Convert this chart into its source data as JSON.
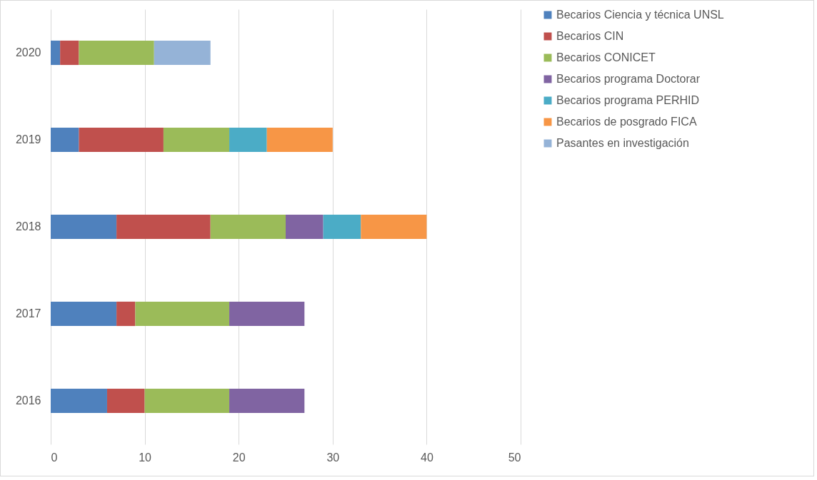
{
  "chart_data": {
    "type": "bar",
    "orientation": "horizontal",
    "stacked": true,
    "categories": [
      "2020",
      "2019",
      "2018",
      "2017",
      "2016"
    ],
    "series": [
      {
        "name": "Becarios Ciencia y técnica UNSL",
        "color": "#4f81bd",
        "values": [
          1,
          3,
          7,
          7,
          6
        ]
      },
      {
        "name": "Becarios CIN",
        "color": "#c0504d",
        "values": [
          2,
          9,
          10,
          2,
          4
        ]
      },
      {
        "name": "Becarios CONICET",
        "color": "#9bbb59",
        "values": [
          8,
          7,
          8,
          10,
          9
        ]
      },
      {
        "name": "Becarios programa Doctorar",
        "color": "#8064a2",
        "values": [
          null,
          null,
          4,
          8,
          8
        ]
      },
      {
        "name": "Becarios programa PERHID",
        "color": "#4bacc6",
        "values": [
          null,
          4,
          4,
          null,
          null
        ]
      },
      {
        "name": "Becarios de posgrado FICA",
        "color": "#f79646",
        "values": [
          null,
          7,
          7,
          null,
          null
        ]
      },
      {
        "name": "Pasantes en investigación",
        "color": "#95b3d7",
        "values": [
          6,
          null,
          null,
          null,
          null
        ]
      }
    ],
    "xlim": [
      0,
      50
    ],
    "xticks": [
      0,
      10,
      20,
      30,
      40,
      50
    ],
    "grid": "x",
    "legend": "right"
  }
}
